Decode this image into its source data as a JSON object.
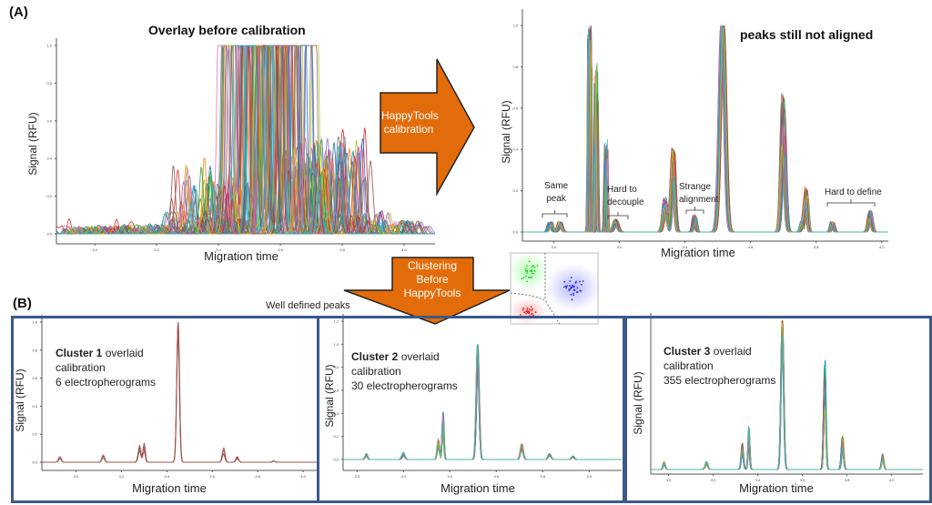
{
  "panel_a_label": "(A)",
  "panel_b_label": "(B)",
  "arrow_calibration": {
    "line1": "HappyTools",
    "line2": "calibration",
    "color": "#e36c0a"
  },
  "arrow_clustering": {
    "line1": "Clustering",
    "line2": "Before",
    "line3": "HappyTools",
    "color": "#e36c0a"
  },
  "well_defined_label": "Well defined peaks",
  "box_border_color": "#3b5a8a",
  "annotations": {
    "same_peak": [
      "Same",
      "peak"
    ],
    "hard_to_decouple": [
      "Hard to",
      "decouple"
    ],
    "strange_alignment": [
      "Strange",
      "alignment"
    ],
    "hard_to_define": "Hard to define"
  },
  "clusters": [
    {
      "name": "Cluster 1",
      "rest": "overlaid",
      "line2": "calibration",
      "line3": "6 electropherograms"
    },
    {
      "name": "Cluster 2",
      "rest": "overlaid",
      "line2": "calibration",
      "line3": "30 electropherograms"
    },
    {
      "name": "Cluster 3",
      "rest": "overlaid",
      "line2": "calibration",
      "line3": "355 electropherograms"
    }
  ],
  "scatter_inset": {
    "cluster_colors": [
      "#22cc22",
      "#2222ee",
      "#ee2222"
    ]
  },
  "chart_data": [
    {
      "id": "overlay-before",
      "type": "line",
      "title": "Overlay before calibration",
      "xlabel": "Migration time",
      "ylabel": "Signal (RFU)",
      "xlim": [
        2.876,
        4.1
      ],
      "ylim": [
        0,
        1.0
      ],
      "xticks": [
        "3.0",
        "3.2",
        "3.4",
        "3.6",
        "3.8",
        "4.0"
      ],
      "yticks": [
        "0.0",
        "0.2",
        "0.4",
        "0.6",
        "0.8",
        "1.0"
      ],
      "traces": 60,
      "shift_range": 0.1,
      "peaks": [
        [
          2.96,
          0.04,
          0.006
        ],
        [
          3.02,
          0.04,
          0.006
        ],
        [
          3.16,
          0.05,
          0.007
        ],
        [
          3.23,
          0.04,
          0.006
        ],
        [
          3.34,
          0.12,
          0.008
        ],
        [
          3.37,
          0.3,
          0.006
        ],
        [
          3.42,
          0.08,
          0.006
        ],
        [
          3.52,
          3.0,
          0.01
        ],
        [
          3.58,
          2.0,
          0.008
        ],
        [
          3.7,
          0.45,
          0.007
        ],
        [
          3.77,
          0.5,
          0.007
        ],
        [
          3.83,
          0.12,
          0.007
        ],
        [
          3.96,
          0.07,
          0.008
        ]
      ]
    },
    {
      "id": "after-calibration",
      "type": "line",
      "title": "peaks still not aligned",
      "xlabel": "Migration time",
      "ylabel": "Signal (RFU)",
      "xlim": [
        2.905,
        4.02
      ],
      "ylim": [
        0,
        1.0
      ],
      "xticks": [
        "3.0",
        "3.2",
        "3.4",
        "3.6",
        "3.8",
        "4.0"
      ],
      "yticks": [
        "0.0",
        "0.2",
        "0.4",
        "0.6",
        "0.8",
        "1.0"
      ],
      "traces": 40,
      "shift_range": 0.006,
      "peaks": [
        [
          2.99,
          0.05,
          0.005
        ],
        [
          3.02,
          0.05,
          0.005
        ],
        [
          3.11,
          1.0,
          0.002
        ],
        [
          3.13,
          0.8,
          0.002
        ],
        [
          3.16,
          0.43,
          0.002
        ],
        [
          3.19,
          0.06,
          0.006
        ],
        [
          3.34,
          0.16,
          0.006
        ],
        [
          3.365,
          0.4,
          0.005
        ],
        [
          3.43,
          0.08,
          0.004
        ],
        [
          3.515,
          1.0,
          0.008
        ],
        [
          3.7,
          0.65,
          0.006
        ],
        [
          3.76,
          0.06,
          0.005
        ],
        [
          3.77,
          0.19,
          0.004
        ],
        [
          3.85,
          0.05,
          0.004
        ],
        [
          3.965,
          0.1,
          0.005
        ]
      ]
    },
    {
      "id": "cluster-1",
      "type": "line",
      "xlabel": "Migration time",
      "ylabel": "Signal (RFU)",
      "xlim": [
        2.85,
        4.06
      ],
      "ylim": [
        0,
        1.0
      ],
      "xticks": [
        "3.0",
        "3.2",
        "3.4",
        "3.6",
        "3.8",
        "4.0"
      ],
      "yticks": [
        "0.0",
        "0.2",
        "0.4",
        "0.6",
        "0.8",
        "1.0"
      ],
      "traces": 6,
      "shift_range": 0.001,
      "peaks": [
        [
          2.93,
          0.04,
          0.006
        ],
        [
          3.12,
          0.05,
          0.006
        ],
        [
          3.28,
          0.12,
          0.006
        ],
        [
          3.3,
          0.13,
          0.005
        ],
        [
          3.45,
          1.0,
          0.006
        ],
        [
          3.65,
          0.1,
          0.006
        ],
        [
          3.71,
          0.04,
          0.006
        ],
        [
          3.87,
          0.01,
          0.006
        ]
      ]
    },
    {
      "id": "cluster-2",
      "type": "line",
      "xlabel": "Migration time",
      "ylabel": "Signal (RFU)",
      "xlim": [
        2.94,
        4.14
      ],
      "ylim": [
        0,
        1.2
      ],
      "xticks": [
        "3.0",
        "3.2",
        "3.4",
        "3.6",
        "3.8",
        "4.0"
      ],
      "yticks": [
        "0.0",
        "0.2",
        "0.4",
        "0.6",
        "0.8",
        "1.0",
        "1.2"
      ],
      "traces": 30,
      "shift_range": 0.002,
      "peaks": [
        [
          3.04,
          0.05,
          0.005
        ],
        [
          3.2,
          0.06,
          0.006
        ],
        [
          3.35,
          0.17,
          0.005
        ],
        [
          3.37,
          0.4,
          0.004
        ],
        [
          3.52,
          1.0,
          0.006
        ],
        [
          3.71,
          0.13,
          0.006
        ],
        [
          3.83,
          0.05,
          0.006
        ],
        [
          3.93,
          0.03,
          0.006
        ]
      ]
    },
    {
      "id": "cluster-3",
      "type": "line",
      "xlabel": "Migration time",
      "ylabel": "Signal (RFU)",
      "xlim": [
        2.92,
        4.14
      ],
      "ylim": [
        0,
        1.0
      ],
      "xticks": [
        "3.0",
        "3.2",
        "3.4",
        "3.6",
        "3.8",
        "4.0"
      ],
      "yticks": [],
      "traces": 40,
      "shift_range": 0.002,
      "peaks": [
        [
          2.98,
          0.05,
          0.005
        ],
        [
          3.17,
          0.05,
          0.006
        ],
        [
          3.33,
          0.17,
          0.005
        ],
        [
          3.36,
          0.28,
          0.004
        ],
        [
          3.51,
          1.0,
          0.006
        ],
        [
          3.7,
          0.72,
          0.005
        ],
        [
          3.78,
          0.22,
          0.005
        ],
        [
          3.96,
          0.1,
          0.005
        ]
      ]
    }
  ]
}
